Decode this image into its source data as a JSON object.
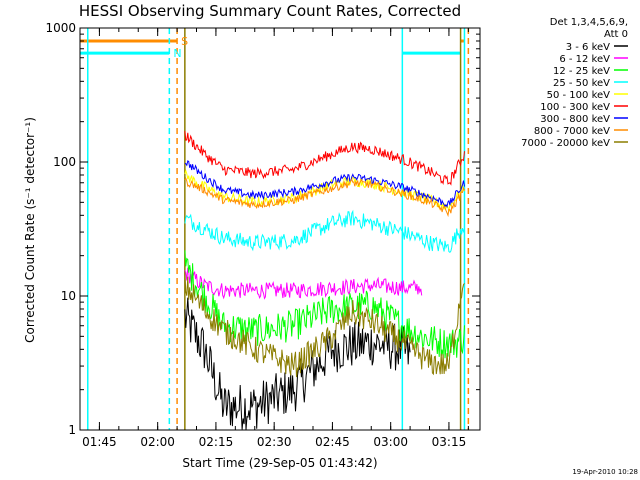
{
  "chart_data": {
    "type": "line",
    "title": "HESSI Observing Summary Count Rates, Corrected",
    "xlabel": "Start Time (29-Sep-05 01:43:42)",
    "ylabel": "Corrected Count Rate (s⁻¹ detector⁻¹)",
    "yscale": "log",
    "ylim": [
      1,
      1000
    ],
    "xlim": [
      "01:40",
      "03:23"
    ],
    "x_ticks": [
      "01:45",
      "02:00",
      "02:15",
      "02:30",
      "02:45",
      "03:00",
      "03:15"
    ],
    "y_ticks": [
      "1",
      "10",
      "100",
      "1000"
    ],
    "legend_header": [
      "Det 1,3,4,5,6,9,",
      "Att 0"
    ],
    "legend_position": "right-outside",
    "series": [
      {
        "name": "3 - 6 keV",
        "color": "#000000",
        "x": [
          "02:07",
          "02:12",
          "02:17",
          "02:25",
          "02:35",
          "02:45",
          "02:55",
          "03:03",
          "03:05"
        ],
        "values": [
          7,
          4,
          1.5,
          1.5,
          2,
          4,
          4.5,
          4,
          3.5
        ]
      },
      {
        "name": "6 - 12 keV",
        "color": "#ff00ff",
        "x": [
          "02:07",
          "02:12",
          "02:17",
          "02:25",
          "02:35",
          "02:45",
          "02:55",
          "03:03",
          "03:08"
        ],
        "values": [
          15,
          12,
          11,
          11,
          11,
          11.5,
          12,
          11.5,
          11.5
        ]
      },
      {
        "name": "12 - 25 keV",
        "color": "#00ff00",
        "x": [
          "02:07",
          "02:12",
          "02:17",
          "02:25",
          "02:35",
          "02:45",
          "02:55",
          "03:03",
          "03:08",
          "03:13",
          "03:17",
          "03:19"
        ],
        "values": [
          17,
          10,
          6,
          5.5,
          6,
          8,
          8.5,
          6,
          5,
          4.5,
          4.5,
          5
        ]
      },
      {
        "name": "25 - 50 keV",
        "color": "#00ffff",
        "x": [
          "02:07",
          "02:12",
          "02:17",
          "02:25",
          "02:35",
          "02:45",
          "02:50",
          "02:55",
          "03:03",
          "03:10",
          "03:15",
          "03:19"
        ],
        "values": [
          38,
          32,
          27,
          25,
          26,
          35,
          38,
          35,
          30,
          25,
          23,
          35
        ]
      },
      {
        "name": "50 - 100 keV",
        "color": "#ffff00",
        "x": [
          "02:07",
          "02:12",
          "02:17",
          "02:25",
          "02:35",
          "02:45",
          "02:50",
          "02:55",
          "03:03",
          "03:10",
          "03:15",
          "03:19"
        ],
        "values": [
          80,
          65,
          55,
          50,
          54,
          68,
          72,
          70,
          60,
          52,
          46,
          65
        ]
      },
      {
        "name": "100 - 300 keV",
        "color": "#ff0000",
        "x": [
          "02:07",
          "02:12",
          "02:17",
          "02:25",
          "02:35",
          "02:45",
          "02:50",
          "02:55",
          "03:03",
          "03:10",
          "03:15",
          "03:19"
        ],
        "values": [
          160,
          115,
          88,
          82,
          88,
          115,
          130,
          125,
          105,
          85,
          70,
          115
        ]
      },
      {
        "name": "300 - 800 keV",
        "color": "#0000ff",
        "x": [
          "02:07",
          "02:12",
          "02:17",
          "02:25",
          "02:35",
          "02:45",
          "02:50",
          "02:55",
          "03:03",
          "03:10",
          "03:15",
          "03:19"
        ],
        "values": [
          102,
          78,
          62,
          56,
          60,
          72,
          77,
          74,
          65,
          55,
          48,
          70
        ]
      },
      {
        "name": "800 - 7000 keV",
        "color": "#ff8c00",
        "x": [
          "02:07",
          "02:12",
          "02:17",
          "02:25",
          "02:35",
          "02:45",
          "02:50",
          "02:55",
          "03:03",
          "03:10",
          "03:15",
          "03:19"
        ],
        "values": [
          72,
          62,
          52,
          48,
          52,
          64,
          70,
          68,
          58,
          50,
          42,
          62
        ]
      },
      {
        "name": "7000 - 20000 keV",
        "color": "#8b7d00",
        "x": [
          "02:07",
          "02:12",
          "02:17",
          "02:25",
          "02:35",
          "02:45",
          "02:50",
          "02:55",
          "03:03",
          "03:10",
          "03:15",
          "03:19"
        ],
        "values": [
          12,
          8,
          5.5,
          4,
          3,
          5,
          7.5,
          6.5,
          4.5,
          3.2,
          3,
          15
        ]
      }
    ],
    "markers": [
      {
        "label": "S",
        "color": "#ff8c00",
        "time": "02:05",
        "style": "dashed"
      },
      {
        "label": "N",
        "color": "#00ffff",
        "time": "02:03",
        "style": "dashed"
      }
    ],
    "state_bars": [
      {
        "color": "#ff8c00",
        "from": "01:40",
        "to": "02:05",
        "value": 800
      },
      {
        "color": "#00ffff",
        "from": "01:40",
        "to": "02:03",
        "value": 650
      },
      {
        "color": "#00ffff",
        "from": "03:03",
        "to": "03:18",
        "value": 650
      },
      {
        "color": "#ff8c00",
        "from": "03:18",
        "to": "03:19",
        "value": 800
      }
    ],
    "vlines": [
      {
        "color": "#00ffff",
        "time": "01:42",
        "style": "solid"
      },
      {
        "color": "#00ffff",
        "time": "02:03",
        "style": "dashed"
      },
      {
        "color": "#ff8c00",
        "time": "02:05",
        "style": "dashed"
      },
      {
        "color": "#8b7d00",
        "time": "02:07",
        "style": "solid"
      },
      {
        "color": "#00ffff",
        "time": "03:03",
        "style": "solid"
      },
      {
        "color": "#00ffff",
        "time": "03:19",
        "style": "solid"
      },
      {
        "color": "#8b7d00",
        "time": "03:18",
        "style": "solid"
      },
      {
        "color": "#ff8c00",
        "time": "03:20",
        "style": "dashed"
      }
    ],
    "timestamp": "19-Apr-2010 10:28"
  }
}
